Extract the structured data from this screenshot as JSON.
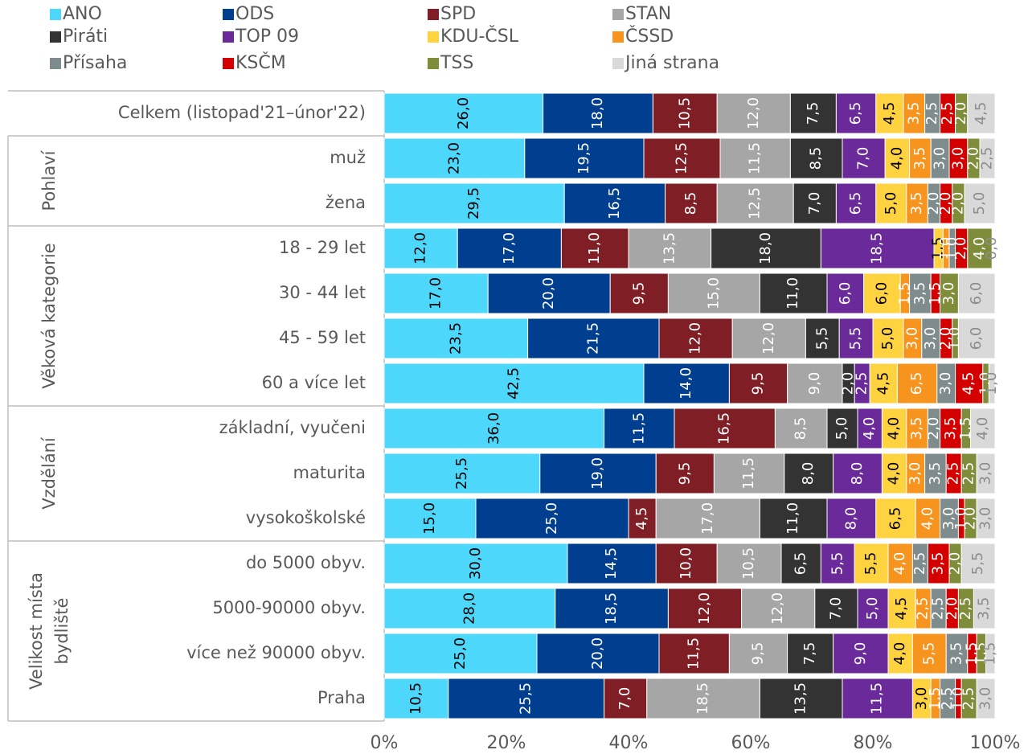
{
  "chart_data": {
    "type": "stacked_barh",
    "categories": [
      "Celkem (listopad'21–únor'22)",
      "muž",
      "žena",
      "18 - 29 let",
      "30 - 44 let",
      "45 - 59 let",
      "60 a více let",
      "základní, vyučeni",
      "maturita",
      "vysokoškolské",
      "do 5000 obyv.",
      "5000-90000 obyv.",
      "více než 90000 obyv.",
      "Praha"
    ],
    "groups": [
      {
        "label": [
          "Pohlaví"
        ],
        "start": 1,
        "count": 2
      },
      {
        "label": [
          "Věková kategorie"
        ],
        "start": 3,
        "count": 4
      },
      {
        "label": [
          "Vzdělání"
        ],
        "start": 7,
        "count": 3
      },
      {
        "label": [
          "Velikost místa",
          "bydliště"
        ],
        "start": 10,
        "count": 4
      }
    ],
    "xlim": [
      0,
      100
    ],
    "xticks": [
      {
        "value": 0,
        "label": "0%"
      },
      {
        "value": 20,
        "label": "20%"
      },
      {
        "value": 40,
        "label": "40%"
      },
      {
        "value": 60,
        "label": "60%"
      },
      {
        "value": 80,
        "label": "80%"
      },
      {
        "value": 100,
        "label": "100%"
      }
    ],
    "series": [
      {
        "name": "ANO",
        "color": "#4dd8fb",
        "label_color": "#000000",
        "values": [
          26,
          23,
          29.5,
          12,
          17,
          23.5,
          42.5,
          36,
          25.5,
          15,
          30,
          28,
          25,
          10.5
        ],
        "value_labels": [
          "26,0",
          "23,0",
          "29,5",
          "12,0",
          "17,0",
          "23,5",
          "42,5",
          "36,0",
          "25,5",
          "15,0",
          "30,0",
          "28,0",
          "25,0",
          "10,5"
        ]
      },
      {
        "name": "ODS",
        "color": "#003f8f",
        "label_color": "#ffffff",
        "values": [
          18,
          19.5,
          16.5,
          17,
          20,
          21.5,
          14,
          11.5,
          19,
          25,
          14.5,
          18.5,
          20,
          25.5
        ],
        "value_labels": [
          "18,0",
          "19,5",
          "16,5",
          "17,0",
          "20,0",
          "21,5",
          "14,0",
          "11,5",
          "19,0",
          "25,0",
          "14,5",
          "18,5",
          "20,0",
          "25,5"
        ]
      },
      {
        "name": "SPD",
        "color": "#7f1f25",
        "label_color": "#ffffff",
        "values": [
          10.5,
          12.5,
          8.5,
          11,
          9.5,
          12,
          9.5,
          16.5,
          9.5,
          4.5,
          10,
          12,
          11.5,
          7
        ],
        "value_labels": [
          "10,5",
          "12,5",
          "8,5",
          "11,0",
          "9,5",
          "12,0",
          "9,5",
          "16,5",
          "9,5",
          "4,5",
          "10,0",
          "12,0",
          "11,5",
          "7,0"
        ]
      },
      {
        "name": "STAN",
        "color": "#a6a6a6",
        "label_color": "#ffffff",
        "values": [
          12,
          11.5,
          12.5,
          13.5,
          15,
          12,
          9,
          8.5,
          11.5,
          17,
          10.5,
          12,
          9.5,
          18.5
        ],
        "value_labels": [
          "12,0",
          "11,5",
          "12,5",
          "13,5",
          "15,0",
          "12,0",
          "9,0",
          "8,5",
          "11,5",
          "17,0",
          "10,5",
          "12,0",
          "9,5",
          "18,5"
        ]
      },
      {
        "name": "Piráti",
        "color": "#333333",
        "label_color": "#ffffff",
        "values": [
          7.5,
          8.5,
          7,
          18,
          11,
          5.5,
          2,
          5,
          8,
          11,
          6.5,
          7,
          7.5,
          13.5
        ],
        "value_labels": [
          "7,5",
          "8,5",
          "7,0",
          "18,0",
          "11,0",
          "5,5",
          "2,0",
          "5,0",
          "8,0",
          "11,0",
          "6,5",
          "7,0",
          "7,5",
          "13,5"
        ]
      },
      {
        "name": "TOP 09",
        "color": "#6a2a9a",
        "label_color": "#ffffff",
        "values": [
          6.5,
          7,
          6.5,
          18.5,
          6,
          5.5,
          2.5,
          4,
          8,
          8,
          5.5,
          5,
          9,
          11.5
        ],
        "value_labels": [
          "6,5",
          "7,0",
          "6,5",
          "18,5",
          "6,0",
          "5,5",
          "2,5",
          "4,0",
          "8,0",
          "8,0",
          "5,5",
          "5,0",
          "9,0",
          "11,5"
        ]
      },
      {
        "name": "KDU-ČSL",
        "color": "#ffd23f",
        "label_color": "#000000",
        "values": [
          4.5,
          4,
          5,
          1.5,
          6,
          5,
          4.5,
          4,
          4,
          6.5,
          5.5,
          4.5,
          4,
          3
        ],
        "value_labels": [
          "4,5",
          "4,0",
          "5,0",
          "1,5",
          "6,0",
          "5,0",
          "4,5",
          "4,0",
          "4,0",
          "6,5",
          "5,5",
          "4,5",
          "4,0",
          "3,0"
        ]
      },
      {
        "name": "ČSSD",
        "color": "#f7941d",
        "label_color": "#ffffff",
        "values": [
          3.5,
          3.5,
          3.5,
          1,
          1.5,
          3,
          6.5,
          3.5,
          3,
          4,
          4,
          2.5,
          5.5,
          1.5
        ],
        "value_labels": [
          "3,5",
          "3,5",
          "3,5",
          "1,0",
          "1,5",
          "3,0",
          "6,5",
          "3,5",
          "3,0",
          "4,0",
          "4,0",
          "2,5",
          "5,5",
          "1,5"
        ]
      },
      {
        "name": "Přísaha",
        "color": "#7f8c8d",
        "label_color": "#ffffff",
        "values": [
          2.5,
          3,
          2,
          1,
          3.5,
          3,
          3,
          2,
          3.5,
          3,
          2.5,
          2.5,
          3.5,
          2.5
        ],
        "value_labels": [
          "2,5",
          "3,0",
          "2,0",
          "1,0",
          "3,5",
          "3,0",
          "3,0",
          "2,0",
          "3,5",
          "3,0",
          "2,5",
          "2,5",
          "3,5",
          "2,5"
        ]
      },
      {
        "name": "KSČM",
        "color": "#d40000",
        "label_color": "#ffffff",
        "values": [
          2.5,
          3,
          2,
          2,
          1.5,
          2,
          4.5,
          3.5,
          2.5,
          1,
          3.5,
          2,
          1.5,
          1
        ],
        "value_labels": [
          "2,5",
          "3,0",
          "2,0",
          "2,0",
          "1,5",
          "2,0",
          "4,5",
          "3,5",
          "2,5",
          "1,0",
          "3,5",
          "2,0",
          "1,5",
          "1,0"
        ]
      },
      {
        "name": "TSS",
        "color": "#7f8c3a",
        "label_color": "#ffffff",
        "values": [
          2,
          2,
          2,
          4,
          3,
          1,
          1,
          1.5,
          2.5,
          2,
          2,
          2.5,
          1.5,
          2.5
        ],
        "value_labels": [
          "2,0",
          "2,0",
          "2,0",
          "4,0",
          "3,0",
          "1,0",
          "1,0",
          "1,5",
          "2,5",
          "2,0",
          "2,0",
          "2,5",
          "1,5",
          "2,5"
        ]
      },
      {
        "name": "Jiná strana",
        "color": "#d9d9d9",
        "label_color": "#8c8c8c",
        "values": [
          4.5,
          2.5,
          5,
          0,
          6,
          6,
          1,
          4,
          3,
          3,
          5.5,
          3.5,
          1.5,
          3
        ],
        "value_labels": [
          "4,5",
          "2,5",
          "5,0",
          "0,0",
          "6,0",
          "6,0",
          "1,0",
          "4,0",
          "3,0",
          "3,0",
          "5,5",
          "3,5",
          "1,5",
          "3,0"
        ]
      }
    ]
  }
}
